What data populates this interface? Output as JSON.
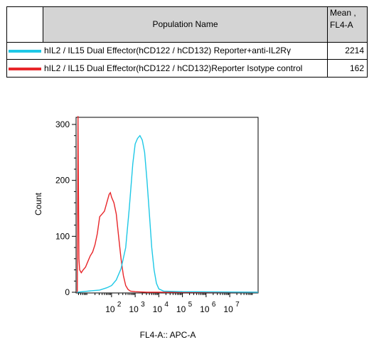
{
  "legend_table": {
    "header_name": "Population Name",
    "header_mean_line1": "Mean ,",
    "header_mean_line2": "FL4-A",
    "rows": [
      {
        "name": "hIL2 / IL15 Dual Effector(hCD122 / hCD132) Reporter+anti-IL2Rγ",
        "mean": "2214",
        "color": "#1ec8e6"
      },
      {
        "name": "hIL2 / IL15 Dual Effector(hCD122 / hCD132)Reporter Isotype control",
        "mean": "162",
        "color": "#e8262a"
      }
    ]
  },
  "chart_data": {
    "type": "line",
    "xlabel": "FL4-A:: APC-A",
    "ylabel": "Count",
    "ylim": [
      0,
      300
    ],
    "xlim_log10": [
      0.5,
      8.2
    ],
    "x_scale": "log",
    "x_ticks": [
      {
        "base": "10",
        "exp": "2",
        "log": 2
      },
      {
        "base": "10",
        "exp": "3",
        "log": 3
      },
      {
        "base": "10",
        "exp": "4",
        "log": 4
      },
      {
        "base": "10",
        "exp": "5",
        "log": 5
      },
      {
        "base": "10",
        "exp": "6",
        "log": 6
      },
      {
        "base": "10",
        "exp": "7",
        "log": 7
      }
    ],
    "y_ticks": [
      "0",
      "100",
      "200",
      "300"
    ],
    "y_tick_values": [
      0,
      100,
      200,
      300
    ],
    "series": [
      {
        "name": "hIL2 / IL15 Dual Effector(hCD122 / hCD132)Reporter Isotype control",
        "color": "#e8262a",
        "points": [
          [
            0.55,
            0
          ],
          [
            0.58,
            320
          ],
          [
            0.6,
            190
          ],
          [
            0.62,
            60
          ],
          [
            0.65,
            40
          ],
          [
            0.72,
            35
          ],
          [
            0.8,
            40
          ],
          [
            0.9,
            45
          ],
          [
            1.0,
            55
          ],
          [
            1.1,
            65
          ],
          [
            1.2,
            72
          ],
          [
            1.3,
            85
          ],
          [
            1.4,
            105
          ],
          [
            1.5,
            135
          ],
          [
            1.6,
            140
          ],
          [
            1.7,
            145
          ],
          [
            1.8,
            160
          ],
          [
            1.9,
            175
          ],
          [
            1.95,
            178
          ],
          [
            2.0,
            170
          ],
          [
            2.1,
            160
          ],
          [
            2.2,
            140
          ],
          [
            2.3,
            100
          ],
          [
            2.4,
            60
          ],
          [
            2.5,
            30
          ],
          [
            2.6,
            12
          ],
          [
            2.7,
            5
          ],
          [
            2.8,
            2
          ],
          [
            3.0,
            1
          ],
          [
            3.5,
            0
          ],
          [
            8.2,
            0
          ]
        ]
      },
      {
        "name": "hIL2 / IL15 Dual Effector(hCD122 / hCD132) Reporter+anti-IL2Rγ",
        "color": "#1ec8e6",
        "points": [
          [
            0.55,
            0
          ],
          [
            1.0,
            2
          ],
          [
            1.5,
            4
          ],
          [
            1.8,
            8
          ],
          [
            2.0,
            12
          ],
          [
            2.2,
            22
          ],
          [
            2.4,
            42
          ],
          [
            2.6,
            80
          ],
          [
            2.75,
            150
          ],
          [
            2.9,
            230
          ],
          [
            3.0,
            265
          ],
          [
            3.1,
            275
          ],
          [
            3.2,
            280
          ],
          [
            3.3,
            272
          ],
          [
            3.4,
            250
          ],
          [
            3.5,
            200
          ],
          [
            3.6,
            140
          ],
          [
            3.7,
            80
          ],
          [
            3.8,
            40
          ],
          [
            3.9,
            16
          ],
          [
            4.0,
            6
          ],
          [
            4.2,
            2
          ],
          [
            5.0,
            1
          ],
          [
            8.2,
            0
          ]
        ]
      }
    ]
  }
}
